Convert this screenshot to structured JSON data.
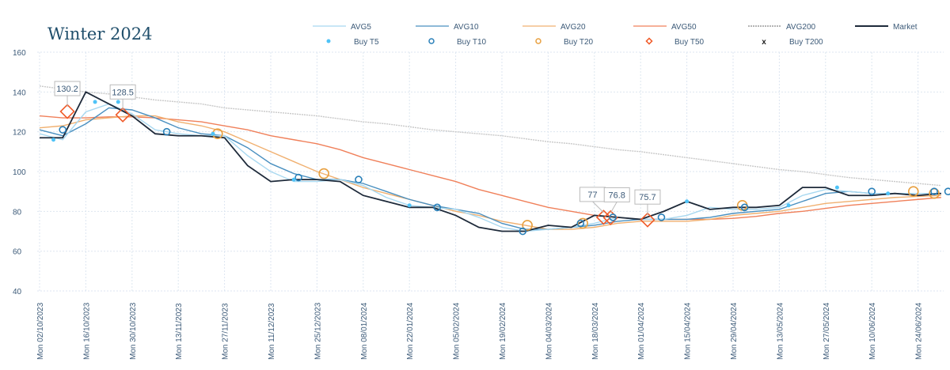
{
  "chart_data": {
    "type": "line",
    "title": "Winter 2024",
    "xlabel": "",
    "ylabel": "",
    "ylim": [
      40,
      160
    ],
    "yticks": [
      40,
      60,
      80,
      100,
      120,
      140,
      160
    ],
    "x_unit": "weeks since Mon 02/10/2023",
    "xticks": [
      "Mon 02/10/2023",
      "Mon 16/10/2023",
      "Mon 30/10/2023",
      "Mon 13/11/2023",
      "Mon 27/11/2023",
      "Mon 11/12/2023",
      "Mon 25/12/2023",
      "Mon 08/01/2024",
      "Mon 22/01/2024",
      "Mon 05/02/2024",
      "Mon 19/02/2024",
      "Mon 04/03/2024",
      "Mon 18/03/2024",
      "Mon 01/04/2024",
      "Mon 15/04/2024",
      "Mon 29/04/2024",
      "Mon 13/05/2024",
      "Mon 27/05/2024",
      "Mon 10/06/2024",
      "Mon 24/06/2024"
    ],
    "grid": true,
    "legend_position": "top",
    "series": [
      {
        "name": "AVG200",
        "color": "#c8c8c8",
        "dash": true,
        "values": [
          143,
          141.5,
          140,
          139,
          137.5,
          136,
          135,
          134,
          132,
          131,
          130,
          129,
          128,
          126.5,
          125,
          124,
          122.5,
          121,
          120,
          119,
          118,
          116.5,
          115,
          114,
          112.5,
          111,
          110,
          108.5,
          107,
          105.5,
          104,
          102.5,
          101,
          100,
          98.5,
          97,
          96,
          95,
          94,
          93
        ]
      },
      {
        "name": "AVG50",
        "color": "#f0805a",
        "values": [
          128,
          127,
          127,
          127.5,
          127.5,
          127,
          126,
          125,
          123,
          121,
          118,
          116,
          114,
          111,
          107,
          104,
          101,
          98,
          95,
          91,
          88,
          85,
          82,
          80,
          78,
          77,
          76,
          76,
          76,
          76,
          76.5,
          77.5,
          79,
          80,
          81.5,
          83,
          84,
          85,
          86,
          87
        ]
      },
      {
        "name": "AVG20",
        "color": "#f0b070",
        "values": [
          122,
          123,
          126,
          127,
          128,
          128,
          125,
          123,
          120,
          115,
          110,
          105,
          100,
          96,
          92,
          89,
          86,
          83,
          80,
          78,
          75,
          73,
          71,
          71,
          72,
          74,
          75,
          75,
          75,
          76,
          78,
          79,
          80,
          82,
          84,
          85,
          86,
          87,
          87.5,
          88
        ]
      },
      {
        "name": "AVG10",
        "color": "#4a90c0",
        "values": [
          121,
          118,
          124,
          132,
          131,
          127,
          122,
          119,
          118,
          112,
          104,
          99,
          96,
          96,
          94,
          90,
          86,
          83,
          81,
          79,
          74,
          71,
          71,
          72,
          73,
          75,
          76,
          76,
          76,
          77,
          79,
          80,
          81,
          85,
          89,
          90,
          89,
          89,
          89,
          89
        ]
      },
      {
        "name": "AVG5",
        "color": "#a8d8f0",
        "values": [
          119,
          116,
          130,
          134,
          129,
          121,
          119,
          118,
          118,
          108,
          100,
          95,
          95,
          96,
          93,
          87,
          83,
          82,
          81,
          77,
          72,
          70,
          71,
          72,
          74,
          77,
          76,
          76,
          78,
          82,
          81,
          81,
          82,
          88,
          91,
          90,
          89,
          89,
          89,
          89
        ]
      },
      {
        "name": "Market",
        "color": "#1e2a3a",
        "values": [
          117,
          117,
          140,
          134,
          128,
          119,
          118,
          118,
          117,
          103,
          95,
          96,
          96,
          95,
          88,
          85,
          82,
          82,
          78,
          72,
          70,
          70,
          73,
          72,
          78,
          77,
          76,
          80,
          85,
          81,
          82,
          82,
          83,
          92,
          92,
          88,
          88,
          89,
          88,
          89
        ]
      }
    ],
    "buy_markers": {
      "Buy T5": [
        [
          0.6,
          116
        ],
        [
          2.4,
          135
        ],
        [
          3.4,
          135
        ],
        [
          7.5,
          119
        ],
        [
          11,
          96
        ],
        [
          16,
          83
        ],
        [
          28,
          85
        ],
        [
          32.4,
          83
        ],
        [
          34.5,
          92
        ],
        [
          36.7,
          89
        ]
      ],
      "Buy T10": [
        [
          1,
          121
        ],
        [
          5.5,
          120
        ],
        [
          11.2,
          97
        ],
        [
          13.8,
          96
        ],
        [
          17.2,
          82
        ],
        [
          20.9,
          70
        ],
        [
          23.4,
          74
        ],
        [
          24.8,
          77
        ],
        [
          26.9,
          77
        ],
        [
          30.5,
          82
        ],
        [
          36,
          90
        ],
        [
          38.7,
          90
        ],
        [
          39.3,
          90
        ]
      ],
      "Buy T20": [
        [
          7.7,
          119
        ],
        [
          12.3,
          99
        ],
        [
          21.1,
          73
        ],
        [
          23.5,
          74
        ],
        [
          30.4,
          83
        ],
        [
          37.8,
          90
        ],
        [
          38.7,
          89
        ]
      ],
      "Buy T50": [
        [
          1.2,
          130.2
        ],
        [
          3.6,
          128.5
        ],
        [
          24.4,
          77
        ],
        [
          24.7,
          76.8
        ],
        [
          26.3,
          75.7
        ]
      ],
      "Buy T200": []
    },
    "annotations": [
      "130.2",
      "128.5",
      "77",
      "76.8",
      "75.7"
    ],
    "legend": [
      {
        "label": "AVG5",
        "kind": "line",
        "color": "#a8d8f0"
      },
      {
        "label": "AVG10",
        "kind": "line",
        "color": "#4a90c0"
      },
      {
        "label": "AVG20",
        "kind": "line",
        "color": "#f0b070"
      },
      {
        "label": "AVG50",
        "kind": "line",
        "color": "#f0805a"
      },
      {
        "label": "AVG200",
        "kind": "dash",
        "color": "#888888"
      },
      {
        "label": "Market",
        "kind": "line",
        "color": "#1e2a3a"
      },
      {
        "label": "Buy T5",
        "kind": "dot",
        "color": "#4fc3f7"
      },
      {
        "label": "Buy T10",
        "kind": "ring",
        "color": "#2a80b9"
      },
      {
        "label": "Buy T20",
        "kind": "ring",
        "color": "#e8a040"
      },
      {
        "label": "Buy T50",
        "kind": "diamond",
        "color": "#f05a28"
      },
      {
        "label": "Buy T200",
        "kind": "x",
        "color": "#222222"
      }
    ]
  }
}
